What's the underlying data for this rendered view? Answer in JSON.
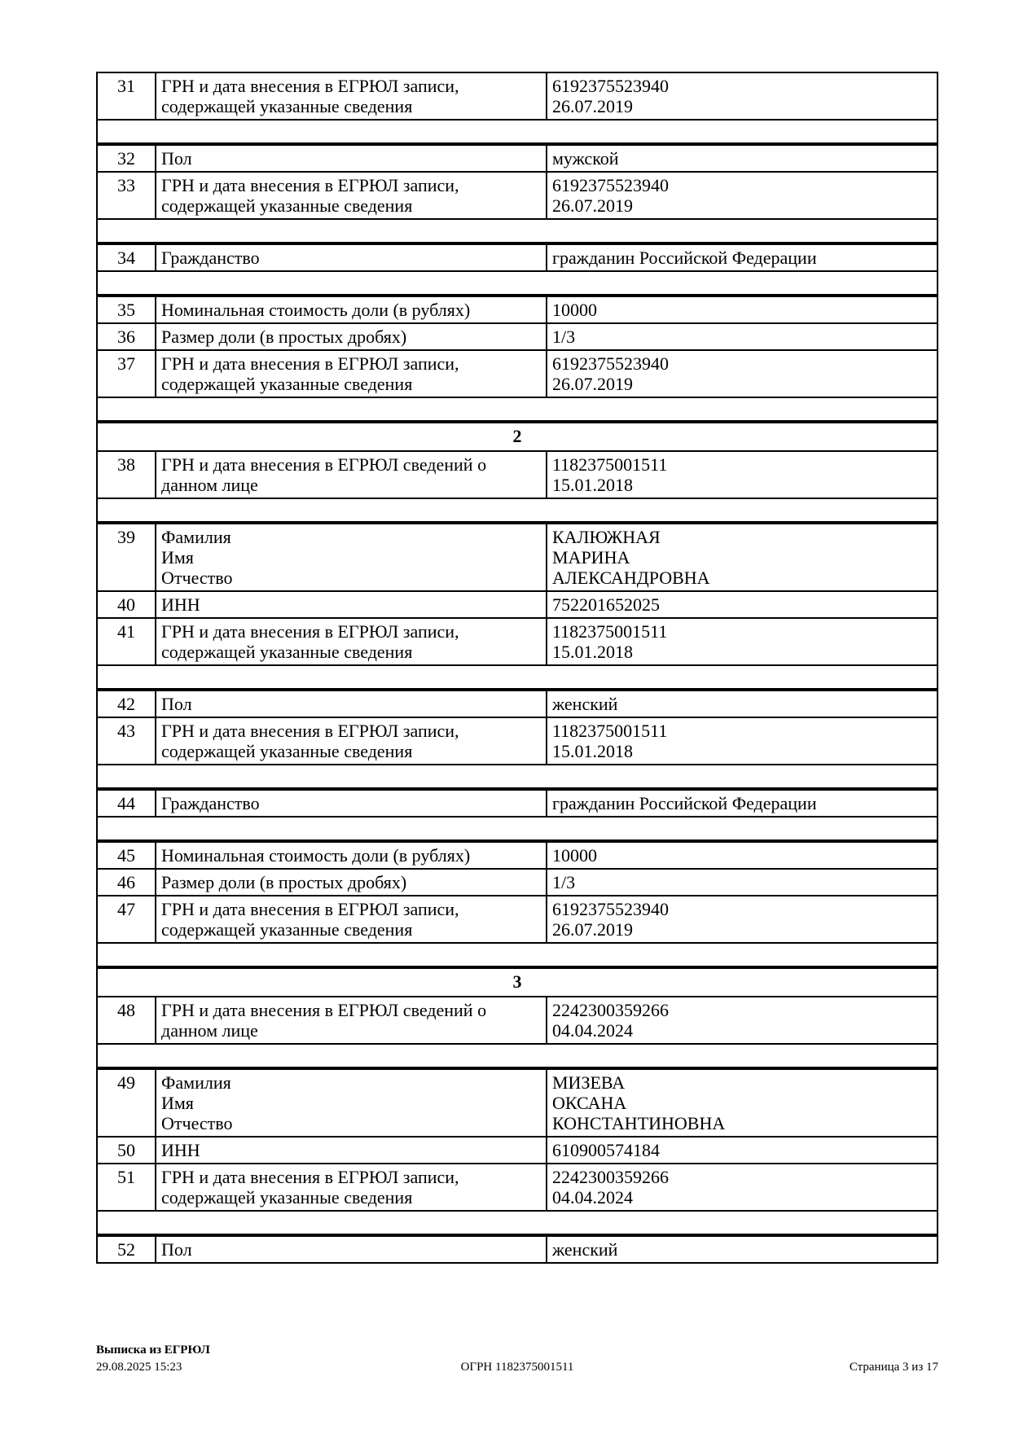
{
  "table": {
    "rows": [
      {
        "kind": "data",
        "num": "31",
        "label": [
          "ГРН и дата внесения в ЕГРЮЛ записи,",
          "содержащей указанные сведения"
        ],
        "value": [
          "6192375523940",
          "26.07.2019"
        ]
      },
      {
        "kind": "spacer"
      },
      {
        "kind": "data",
        "num": "32",
        "label": [
          "Пол"
        ],
        "value": [
          "мужской"
        ]
      },
      {
        "kind": "data",
        "num": "33",
        "label": [
          "ГРН и дата внесения в ЕГРЮЛ записи,",
          "содержащей указанные сведения"
        ],
        "value": [
          "6192375523940",
          "26.07.2019"
        ]
      },
      {
        "kind": "spacer"
      },
      {
        "kind": "data",
        "num": "34",
        "label": [
          "Гражданство"
        ],
        "value": [
          "гражданин Российской Федерации"
        ]
      },
      {
        "kind": "spacer"
      },
      {
        "kind": "data",
        "num": "35",
        "label": [
          "Номинальная стоимость доли (в рублях)"
        ],
        "value": [
          "10000"
        ]
      },
      {
        "kind": "data",
        "num": "36",
        "label": [
          "Размер доли (в простых дробях)"
        ],
        "value": [
          "1/3"
        ]
      },
      {
        "kind": "data",
        "num": "37",
        "label": [
          "ГРН и дата внесения в ЕГРЮЛ записи,",
          "содержащей указанные сведения"
        ],
        "value": [
          "6192375523940",
          "26.07.2019"
        ]
      },
      {
        "kind": "spacer"
      },
      {
        "kind": "section",
        "num": "2"
      },
      {
        "kind": "data",
        "num": "38",
        "label": [
          "ГРН и дата внесения в ЕГРЮЛ сведений о",
          "данном лице"
        ],
        "value": [
          "1182375001511",
          "15.01.2018"
        ]
      },
      {
        "kind": "spacer"
      },
      {
        "kind": "data",
        "num": "39",
        "label": [
          "Фамилия",
          "Имя",
          "Отчество"
        ],
        "value": [
          "КАЛЮЖНАЯ",
          "МАРИНА",
          "АЛЕКСАНДРОВНА"
        ]
      },
      {
        "kind": "data",
        "num": "40",
        "label": [
          "ИНН"
        ],
        "value": [
          "752201652025"
        ]
      },
      {
        "kind": "data",
        "num": "41",
        "label": [
          "ГРН и дата внесения в ЕГРЮЛ записи,",
          "содержащей указанные сведения"
        ],
        "value": [
          "1182375001511",
          "15.01.2018"
        ]
      },
      {
        "kind": "spacer"
      },
      {
        "kind": "data",
        "num": "42",
        "label": [
          "Пол"
        ],
        "value": [
          "женский"
        ]
      },
      {
        "kind": "data",
        "num": "43",
        "label": [
          "ГРН и дата внесения в ЕГРЮЛ записи,",
          "содержащей указанные сведения"
        ],
        "value": [
          "1182375001511",
          "15.01.2018"
        ]
      },
      {
        "kind": "spacer"
      },
      {
        "kind": "data",
        "num": "44",
        "label": [
          "Гражданство"
        ],
        "value": [
          "гражданин Российской Федерации"
        ]
      },
      {
        "kind": "spacer"
      },
      {
        "kind": "data",
        "num": "45",
        "label": [
          "Номинальная стоимость доли (в рублях)"
        ],
        "value": [
          "10000"
        ]
      },
      {
        "kind": "data",
        "num": "46",
        "label": [
          "Размер доли (в простых дробях)"
        ],
        "value": [
          "1/3"
        ]
      },
      {
        "kind": "data",
        "num": "47",
        "label": [
          "ГРН и дата внесения в ЕГРЮЛ записи,",
          "содержащей указанные сведения"
        ],
        "value": [
          "6192375523940",
          "26.07.2019"
        ]
      },
      {
        "kind": "spacer"
      },
      {
        "kind": "section",
        "num": "3"
      },
      {
        "kind": "data",
        "num": "48",
        "label": [
          "ГРН и дата внесения в ЕГРЮЛ сведений о",
          "данном лице"
        ],
        "value": [
          "2242300359266",
          "04.04.2024"
        ]
      },
      {
        "kind": "spacer"
      },
      {
        "kind": "data",
        "num": "49",
        "label": [
          "Фамилия",
          "Имя",
          "Отчество"
        ],
        "value": [
          "МИЗЕВА",
          "ОКСАНА",
          "КОНСТАНТИНОВНА"
        ]
      },
      {
        "kind": "data",
        "num": "50",
        "label": [
          "ИНН"
        ],
        "value": [
          "610900574184"
        ]
      },
      {
        "kind": "data",
        "num": "51",
        "label": [
          "ГРН и дата внесения в ЕГРЮЛ записи,",
          "содержащей указанные сведения"
        ],
        "value": [
          "2242300359266",
          "04.04.2024"
        ]
      },
      {
        "kind": "spacer"
      },
      {
        "kind": "data",
        "num": "52",
        "label": [
          "Пол"
        ],
        "value": [
          "женский"
        ]
      }
    ]
  },
  "footer": {
    "doc_name": "Выписка из ЕГРЮЛ",
    "timestamp": "29.08.2025 15:23",
    "ogrn": "ОГРН 1182375001511",
    "page_info": "Страница 3 из 17"
  }
}
